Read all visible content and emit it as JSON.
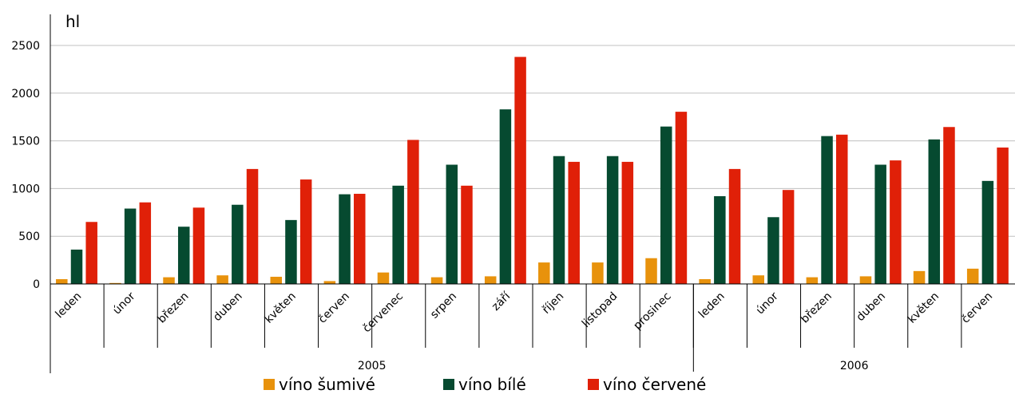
{
  "chart_data": {
    "type": "bar",
    "ylabel": "hl",
    "ylim": [
      0,
      2500
    ],
    "yticks": [
      0,
      500,
      1000,
      1500,
      2000,
      2500
    ],
    "grid": true,
    "legend_position": "bottom",
    "categories": [
      "leden",
      "únor",
      "březen",
      "duben",
      "květen",
      "červen",
      "červenec",
      "srpen",
      "září",
      "říjen",
      "listopad",
      "prosinec",
      "leden",
      "únor",
      "březen",
      "duben",
      "květen",
      "červen"
    ],
    "groups": [
      {
        "label": "2005",
        "span": 12
      },
      {
        "label": "2006",
        "span": 6
      }
    ],
    "series": [
      {
        "name": "víno šumivé",
        "color": "#e8920c",
        "values": [
          50,
          10,
          70,
          90,
          75,
          30,
          120,
          70,
          80,
          225,
          225,
          270,
          50,
          90,
          70,
          80,
          135,
          160
        ]
      },
      {
        "name": "víno bílé",
        "color": "#064a30",
        "values": [
          360,
          790,
          600,
          830,
          670,
          940,
          1030,
          1250,
          1830,
          1340,
          1340,
          1650,
          920,
          700,
          1550,
          1250,
          1515,
          1080
        ]
      },
      {
        "name": "víno červené",
        "color": "#e02008",
        "values": [
          650,
          855,
          800,
          1205,
          1095,
          945,
          1510,
          1030,
          2380,
          1280,
          1280,
          1805,
          1205,
          985,
          1565,
          1295,
          1645,
          1430
        ]
      }
    ]
  }
}
